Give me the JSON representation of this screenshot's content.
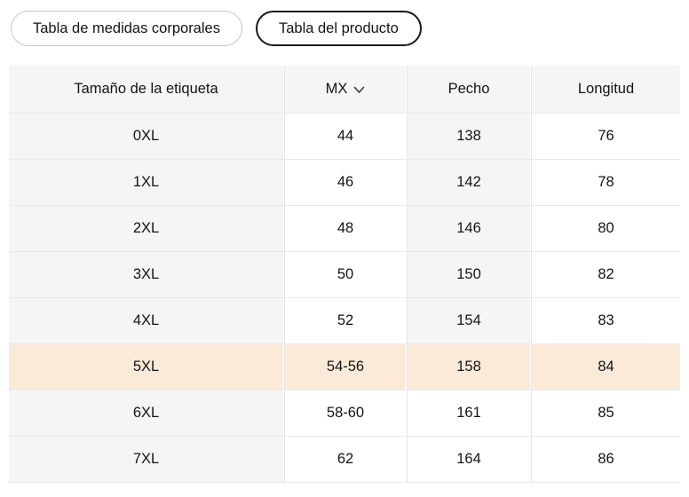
{
  "tabs": [
    {
      "label": "Tabla de medidas corporales",
      "active": false
    },
    {
      "label": "Tabla del producto",
      "active": true
    }
  ],
  "table": {
    "columns": [
      {
        "label": "Tamaño de la etiqueta"
      },
      {
        "label": "MX",
        "dropdown_icon": "chevron-down-icon"
      },
      {
        "label": "Pecho"
      },
      {
        "label": "Longitud"
      }
    ],
    "rows": [
      {
        "size": "0XL",
        "mx": "44",
        "pecho": "138",
        "longitud": "76",
        "highlighted": false,
        "pecho_shaded": true
      },
      {
        "size": "1XL",
        "mx": "46",
        "pecho": "142",
        "longitud": "78",
        "highlighted": false,
        "pecho_shaded": true
      },
      {
        "size": "2XL",
        "mx": "48",
        "pecho": "146",
        "longitud": "80",
        "highlighted": false,
        "pecho_shaded": true
      },
      {
        "size": "3XL",
        "mx": "50",
        "pecho": "150",
        "longitud": "82",
        "highlighted": false,
        "pecho_shaded": true
      },
      {
        "size": "4XL",
        "mx": "52",
        "pecho": "154",
        "longitud": "83",
        "highlighted": false,
        "pecho_shaded": true
      },
      {
        "size": "5XL",
        "mx": "54-56",
        "pecho": "158",
        "longitud": "84",
        "highlighted": true,
        "pecho_shaded": false
      },
      {
        "size": "6XL",
        "mx": "58-60",
        "pecho": "161",
        "longitud": "85",
        "highlighted": false,
        "pecho_shaded": false
      },
      {
        "size": "7XL",
        "mx": "62",
        "pecho": "164",
        "longitud": "86",
        "highlighted": false,
        "pecho_shaded": false
      }
    ]
  },
  "colors": {
    "highlight_bg": "#fcead9",
    "shaded_bg": "#f5f5f6",
    "active_tab_border": "#1a1a1a",
    "inactive_tab_border": "#c6c6c8",
    "row_divider": "#e9e9eb",
    "text": "#141414"
  }
}
